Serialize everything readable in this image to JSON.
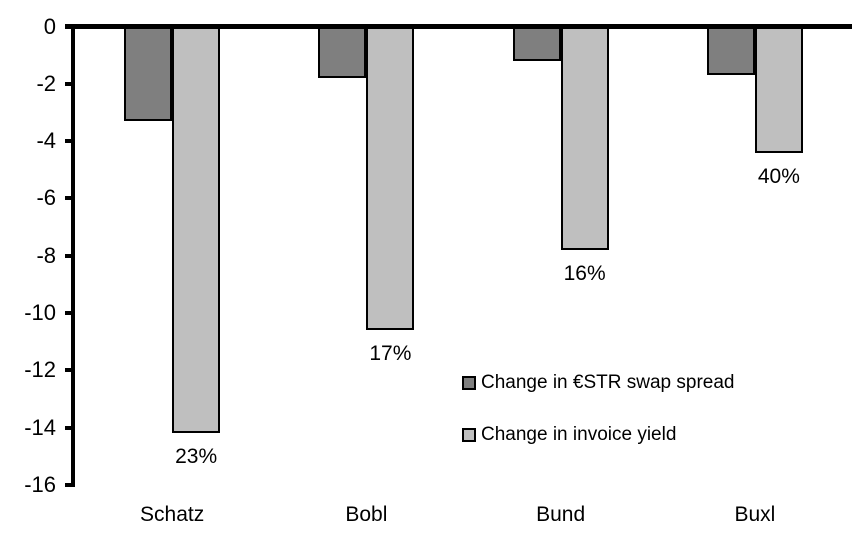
{
  "chart_data": {
    "type": "bar",
    "title": "",
    "xlabel": "",
    "ylabel": "",
    "categories": [
      "Schatz",
      "Bobl",
      "Bund",
      "Buxl"
    ],
    "series": [
      {
        "name": "Change in €STR swap spread",
        "color": "#7f7f7f",
        "values": [
          -3.3,
          -1.8,
          -1.2,
          -1.7
        ]
      },
      {
        "name": "Change in invoice yield",
        "color": "#bfbfbf",
        "values": [
          -14.2,
          -10.6,
          -7.8,
          -4.4
        ],
        "bar_labels": [
          "23%",
          "17%",
          "16%",
          "40%"
        ]
      }
    ],
    "ylim": [
      0,
      -16
    ],
    "y_ticks": [
      0,
      -2,
      -4,
      -6,
      -8,
      -10,
      -12,
      -14,
      -16
    ],
    "grid": false,
    "legend_position": "inside-right-middle",
    "bar_border_color": "#000000",
    "axis_color": "#000000",
    "background_color": "#ffffff"
  }
}
